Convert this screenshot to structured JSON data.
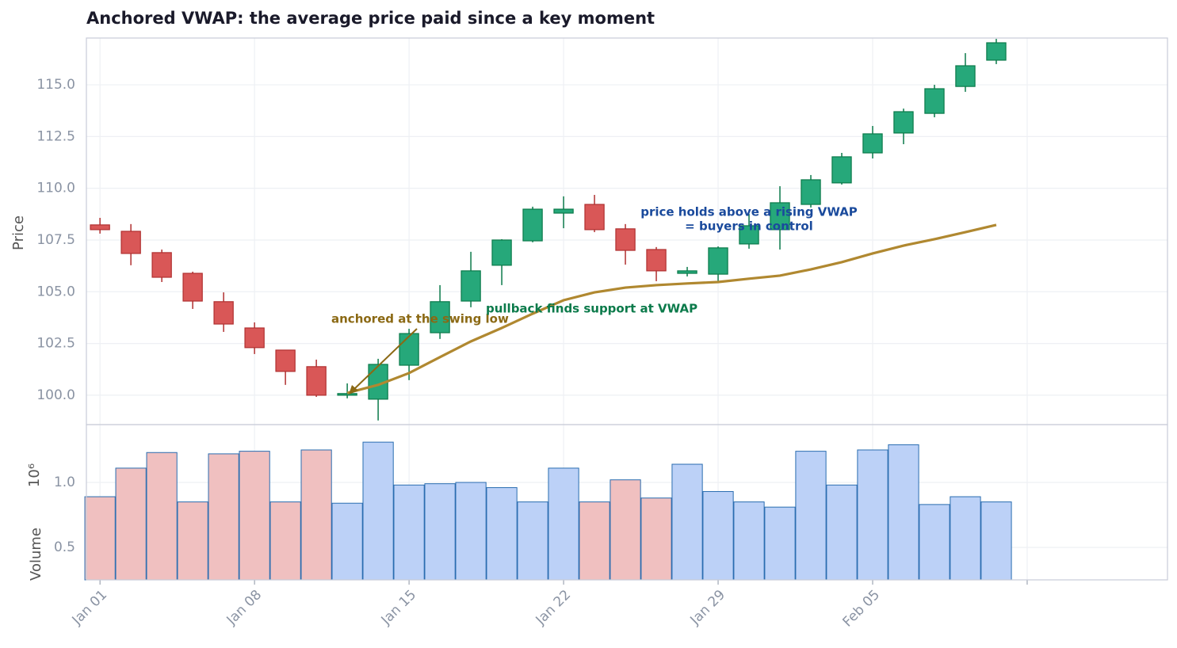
{
  "chart_data": [
    {
      "type": "candlestick",
      "title": "Anchored VWAP: the average price paid since a key moment",
      "ylabel": "Price",
      "x": [
        0,
        1,
        2,
        3,
        4,
        5,
        6,
        7,
        8,
        9,
        10,
        11,
        12,
        13,
        14,
        15,
        16,
        17,
        18,
        19,
        20,
        21,
        22,
        23,
        24,
        25,
        26,
        27,
        28,
        29
      ],
      "open": [
        108.23,
        107.92,
        106.89,
        105.89,
        104.52,
        103.25,
        102.18,
        101.38,
        100.0,
        99.81,
        101.45,
        103.02,
        104.55,
        106.28,
        107.46,
        108.8,
        109.22,
        108.04,
        107.04,
        105.89,
        105.85,
        107.31,
        108.0,
        109.22,
        110.26,
        111.71,
        112.67,
        113.62,
        114.92,
        116.19
      ],
      "high": [
        108.57,
        108.27,
        107.04,
        105.97,
        104.97,
        103.52,
        102.18,
        101.72,
        100.57,
        101.76,
        103.21,
        105.32,
        106.93,
        107.54,
        109.11,
        109.61,
        109.68,
        108.27,
        107.16,
        106.2,
        107.19,
        108.76,
        110.1,
        110.64,
        111.71,
        113.01,
        113.85,
        115.0,
        116.53,
        117.22
      ],
      "low": [
        107.81,
        106.28,
        105.47,
        104.17,
        103.06,
        101.99,
        100.5,
        99.92,
        99.85,
        98.78,
        100.73,
        102.72,
        104.25,
        105.32,
        107.39,
        108.07,
        107.88,
        106.31,
        105.51,
        105.74,
        105.47,
        107.08,
        107.04,
        109.07,
        110.18,
        111.44,
        112.13,
        113.43,
        114.66,
        116.0
      ],
      "close": [
        108.0,
        106.85,
        105.7,
        104.55,
        103.44,
        102.3,
        101.15,
        100.0,
        100.08,
        101.49,
        102.98,
        104.52,
        106.01,
        107.5,
        108.99,
        108.99,
        108.0,
        107.0,
        106.01,
        106.01,
        107.12,
        108.19,
        109.3,
        110.41,
        111.52,
        112.63,
        113.7,
        114.81,
        115.92,
        117.03
      ],
      "up_color": "#26a87a",
      "up_edge": "#0b7a4a",
      "down_color": "#d95757",
      "down_edge": "#b03030",
      "series": [
        {
          "name": "VWAP",
          "color": "#b08830",
          "values": [
            null,
            null,
            null,
            null,
            null,
            null,
            null,
            null,
            100.11,
            100.5,
            101.07,
            101.84,
            102.6,
            103.25,
            103.94,
            104.59,
            104.97,
            105.2,
            105.32,
            105.4,
            105.47,
            105.63,
            105.78,
            106.08,
            106.43,
            106.85,
            107.23,
            107.54,
            107.88,
            108.23
          ]
        }
      ],
      "annotations": [
        {
          "lines": [
            "anchored at the swing low"
          ],
          "color": "#8b6914"
        },
        {
          "lines": [
            "pullback finds support at VWAP"
          ],
          "color": "#0b7a4a"
        },
        {
          "lines": [
            "price holds above a rising VWAP",
            "= buyers in control"
          ],
          "color": "#1a4a9c"
        }
      ],
      "xlim": [
        -0.44,
        34.54
      ],
      "ylim": [
        98.58,
        117.26
      ],
      "yticks": [
        {
          "value": 100,
          "label": "100.0"
        },
        {
          "value": 102.5,
          "label": "102.5"
        },
        {
          "value": 105,
          "label": "105.0"
        },
        {
          "value": 107.5,
          "label": "107.5"
        },
        {
          "value": 110,
          "label": "110.0"
        },
        {
          "value": 112.5,
          "label": "112.5"
        },
        {
          "value": 115,
          "label": "115.0"
        }
      ],
      "grid": true
    },
    {
      "type": "bar",
      "ylabel": "Volume",
      "offset_label": "10⁶",
      "x": [
        0,
        1,
        2,
        3,
        4,
        5,
        6,
        7,
        8,
        9,
        10,
        11,
        12,
        13,
        14,
        15,
        16,
        17,
        18,
        19,
        20,
        21,
        22,
        23,
        24,
        25,
        26,
        27,
        28,
        29
      ],
      "values": [
        0.89,
        1.11,
        1.23,
        0.85,
        1.22,
        1.24,
        0.85,
        1.25,
        0.84,
        1.31,
        0.98,
        0.99,
        1.0,
        0.96,
        0.85,
        1.11,
        0.85,
        1.02,
        0.88,
        1.14,
        0.93,
        0.85,
        0.81,
        1.24,
        0.98,
        1.25,
        1.29,
        0.83,
        0.89,
        0.85
      ],
      "up_color": "#bcd1f7",
      "down_color": "#f0c0c0",
      "edge_color": "#2a6db0",
      "xlim": [
        -0.44,
        34.54
      ],
      "ylim": [
        0.25,
        1.445
      ],
      "yticks": [
        0.5,
        {
          "value": 1,
          "label": "1.0"
        }
      ],
      "xticks": [
        {
          "value": 0,
          "label": "Jan 01"
        },
        {
          "value": 5,
          "label": "Jan 08"
        },
        {
          "value": 10,
          "label": "Jan 15"
        },
        {
          "value": 15,
          "label": "Jan 22"
        },
        {
          "value": 20,
          "label": "Jan 29"
        },
        {
          "value": 25,
          "label": "Feb 05"
        },
        {
          "value": 30,
          "label": null
        }
      ],
      "grid": true
    }
  ]
}
